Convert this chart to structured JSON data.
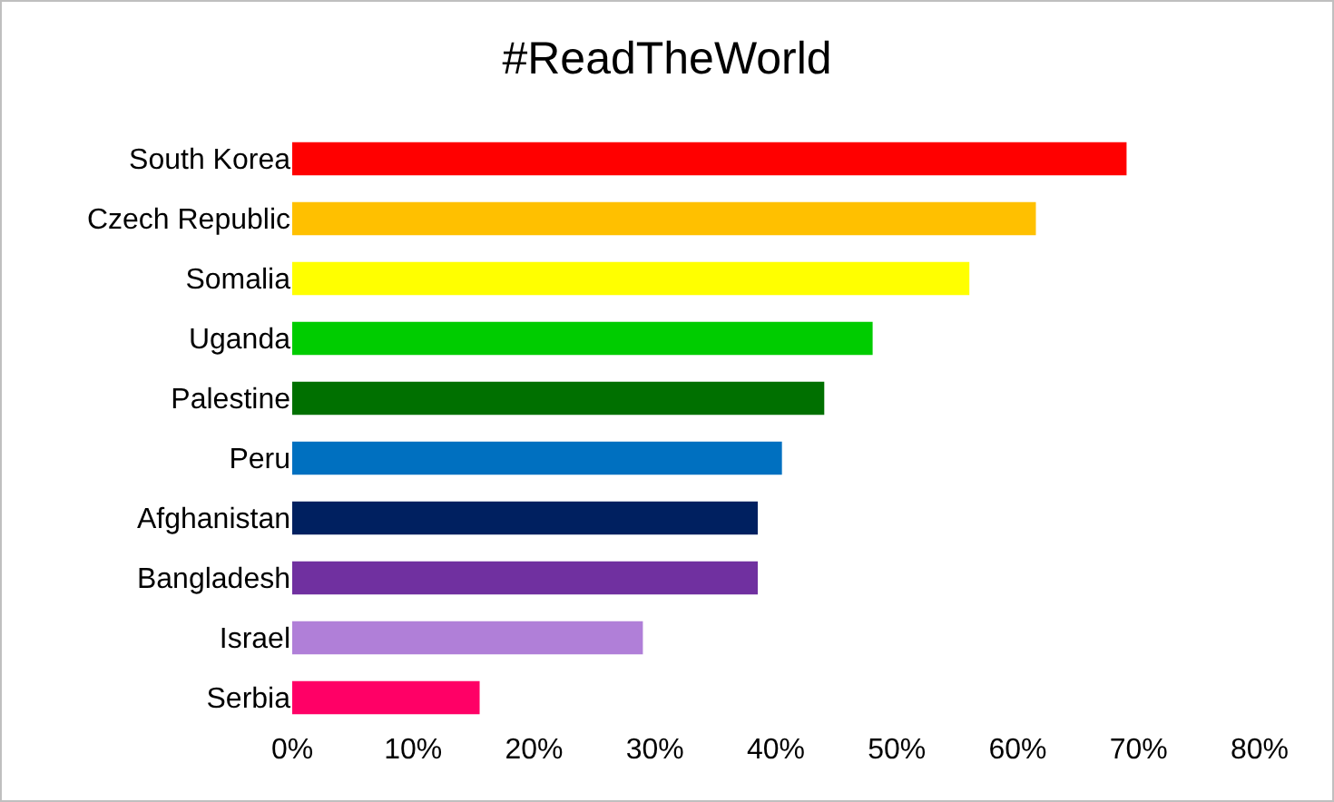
{
  "chart_data": {
    "type": "bar",
    "orientation": "horizontal",
    "title": "#ReadTheWorld",
    "categories": [
      "South Korea",
      "Czech Republic",
      "Somalia",
      "Uganda",
      "Palestine",
      "Peru",
      "Afghanistan",
      "Bangladesh",
      "Israel",
      "Serbia"
    ],
    "values": [
      69,
      61.5,
      56,
      48,
      44,
      40.5,
      38.5,
      38.5,
      29,
      15.5
    ],
    "colors": [
      "#ff0000",
      "#ffc000",
      "#ffff00",
      "#00cc00",
      "#007000",
      "#0070c0",
      "#002060",
      "#7030a0",
      "#b07fd8",
      "#ff0066"
    ],
    "xlim": [
      0,
      80
    ],
    "xticks": [
      {
        "value": 0,
        "label": "0%"
      },
      {
        "value": 10,
        "label": "10%"
      },
      {
        "value": 20,
        "label": "20%"
      },
      {
        "value": 30,
        "label": "30%"
      },
      {
        "value": 40,
        "label": "40%"
      },
      {
        "value": 50,
        "label": "50%"
      },
      {
        "value": 60,
        "label": "60%"
      },
      {
        "value": 70,
        "label": "70%"
      },
      {
        "value": 80,
        "label": "80%"
      }
    ],
    "grid": false,
    "legend": false
  }
}
